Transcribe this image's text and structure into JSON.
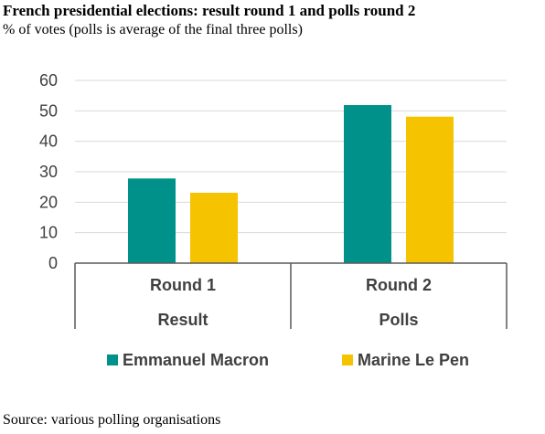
{
  "title": "French presidential elections: result round 1 and polls round 2",
  "subtitle": "% of votes (polls is average of the final three polls)",
  "source": "Source: various polling organisations",
  "colors": {
    "macron": "#00928a",
    "lepen": "#f5c300",
    "grid": "#d9d9d9",
    "axis": "#595959",
    "text": "#404040"
  },
  "chart_data": {
    "type": "bar",
    "categories": [
      "Round 1",
      "Round 2"
    ],
    "groups": [
      "Result",
      "Polls"
    ],
    "series": [
      {
        "name": "Emmanuel Macron",
        "values": [
          27.8,
          51.9
        ],
        "color": "#00928a"
      },
      {
        "name": "Marine Le Pen",
        "values": [
          23.1,
          48.1
        ],
        "color": "#f5c300"
      }
    ],
    "ylim": [
      0,
      60
    ],
    "yticks": [
      "0",
      "10",
      "20",
      "30",
      "40",
      "50",
      "60"
    ],
    "grid": true,
    "legend": "bottom"
  }
}
